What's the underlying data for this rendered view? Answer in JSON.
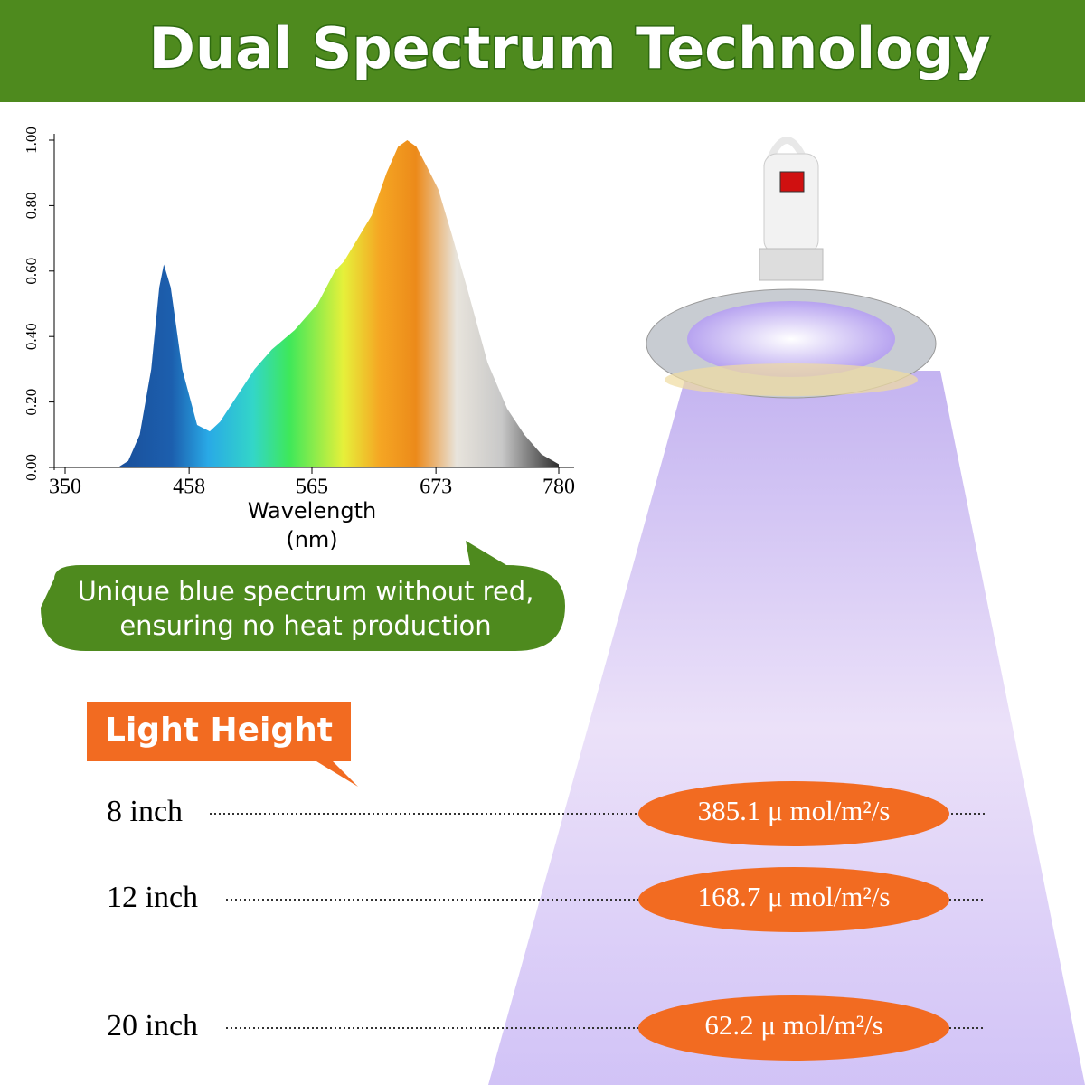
{
  "header": {
    "title": "Dual Spectrum Technology"
  },
  "chart_data": {
    "type": "area",
    "xlabel": "Wavelength\n(nm)",
    "x": [
      396,
      405,
      415,
      425,
      432,
      436,
      442,
      452,
      465,
      476,
      485,
      500,
      515,
      530,
      550,
      570,
      585,
      593,
      605,
      617,
      630,
      640,
      648,
      656,
      665,
      675,
      687,
      700,
      718,
      735,
      750,
      765,
      780
    ],
    "values": [
      0,
      0.02,
      0.1,
      0.3,
      0.55,
      0.62,
      0.55,
      0.3,
      0.13,
      0.11,
      0.14,
      0.22,
      0.3,
      0.36,
      0.42,
      0.5,
      0.6,
      0.63,
      0.7,
      0.77,
      0.9,
      0.98,
      1.0,
      0.98,
      0.92,
      0.85,
      0.71,
      0.55,
      0.32,
      0.18,
      0.1,
      0.04,
      0.01
    ],
    "xlim": [
      350,
      780
    ],
    "xticks": [
      350,
      458,
      565,
      673,
      780
    ],
    "ylim": [
      0,
      1
    ],
    "yticks": [
      {
        "value": 0,
        "label": "0.00"
      },
      {
        "value": 0.2,
        "label": "0.20"
      },
      {
        "value": 0.4,
        "label": "0.40"
      },
      {
        "value": 0.6,
        "label": "0.60"
      },
      {
        "value": 0.8,
        "label": "0.80"
      },
      {
        "value": 1,
        "label": "1.00"
      }
    ]
  },
  "callout": {
    "lines": [
      "Unique blue spectrum without red,",
      "ensuring no heat production"
    ]
  },
  "light_height": {
    "title": "Light Height",
    "rows": [
      {
        "height": "8 inch",
        "ppfd": "385.1 μ mol/m²/s"
      },
      {
        "height": "12 inch",
        "ppfd": "168.7 μ mol/m²/s"
      },
      {
        "height": "20 inch",
        "ppfd": "62.2 μ mol/m²/s"
      }
    ]
  }
}
